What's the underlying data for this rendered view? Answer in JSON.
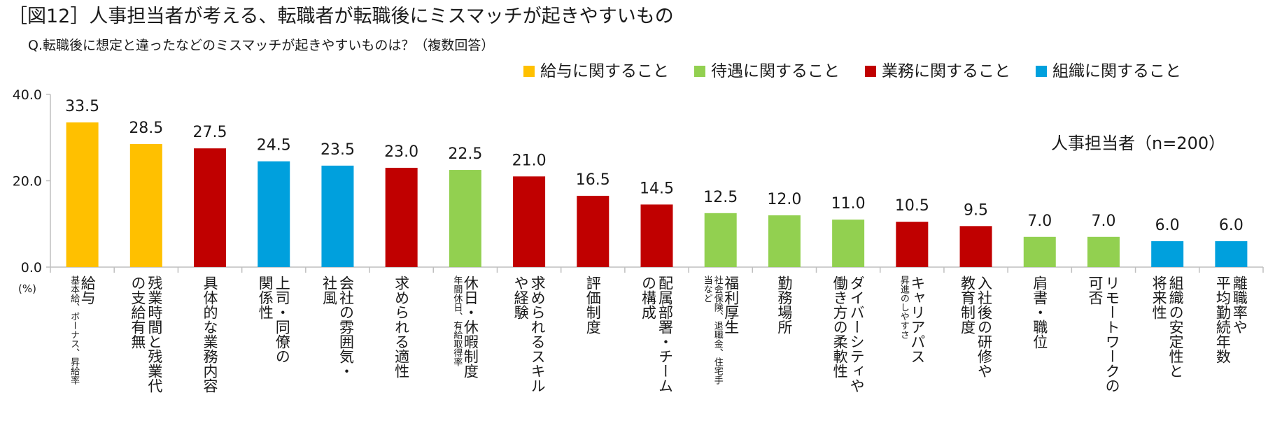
{
  "title": "［図12］人事担当者が考える、転職者が転職後にミスマッチが起きやすいもの",
  "subtitle": "Q.転職後に想定と違ったなどのミスマッチが起きやすいものは？（複数回答）",
  "note": "人事担当者（n=200）",
  "unit_label": "(%)",
  "colors": {
    "給与": "#FFC000",
    "待遇": "#92D050",
    "業務": "#C00000",
    "組織": "#00A0DD"
  },
  "legend": [
    {
      "group": "給与",
      "label": "給与に関すること"
    },
    {
      "group": "待遇",
      "label": "待遇に関すること"
    },
    {
      "group": "業務",
      "label": "業務に関すること"
    },
    {
      "group": "組織",
      "label": "組織に関すること"
    }
  ],
  "chart_data": {
    "type": "bar",
    "ylim": [
      0,
      40
    ],
    "yticks": [
      "0.0",
      "20.0",
      "40.0"
    ],
    "grid": false,
    "legend_position": "top-right",
    "categories": [
      {
        "main": [
          "給与"
        ],
        "sub": [
          "基本給、ボーナス、昇給率"
        ],
        "group": "給与"
      },
      {
        "main": [
          "残業時間と残業代",
          "の支給有無"
        ],
        "sub": [],
        "group": "給与"
      },
      {
        "main": [
          "具体的な業務内容"
        ],
        "sub": [],
        "group": "業務"
      },
      {
        "main": [
          "上司・同僚の",
          "関係性"
        ],
        "sub": [],
        "group": "組織"
      },
      {
        "main": [
          "会社の雰囲気・",
          "社風"
        ],
        "sub": [],
        "group": "組織"
      },
      {
        "main": [
          "求められる適性"
        ],
        "sub": [],
        "group": "業務"
      },
      {
        "main": [
          "休日・休暇制度"
        ],
        "sub": [
          "年間休日、有給取得率"
        ],
        "group": "待遇"
      },
      {
        "main": [
          "求められるスキル",
          "や経験"
        ],
        "sub": [],
        "group": "業務"
      },
      {
        "main": [
          "評価制度"
        ],
        "sub": [],
        "group": "業務"
      },
      {
        "main": [
          "配属部署・チーム",
          "の構成"
        ],
        "sub": [],
        "group": "業務"
      },
      {
        "main": [
          "福利厚生"
        ],
        "sub": [
          "社会保険、退職金、住宅手",
          "当など"
        ],
        "group": "待遇"
      },
      {
        "main": [
          "勤務場所"
        ],
        "sub": [],
        "group": "待遇"
      },
      {
        "main": [
          "ダイバーシティや",
          "働き方の柔軟性"
        ],
        "sub": [],
        "group": "待遇"
      },
      {
        "main": [
          "キャリアパス"
        ],
        "sub": [
          "昇進のしやすさ"
        ],
        "group": "業務"
      },
      {
        "main": [
          "入社後の研修や",
          "教育制度"
        ],
        "sub": [],
        "group": "業務"
      },
      {
        "main": [
          "肩書・職位"
        ],
        "sub": [],
        "group": "待遇"
      },
      {
        "main": [
          "リモートワークの",
          "可否"
        ],
        "sub": [],
        "group": "待遇"
      },
      {
        "main": [
          "組織の安定性と",
          "将来性"
        ],
        "sub": [],
        "group": "組織"
      },
      {
        "main": [
          "離職率や",
          "平均勤続年数"
        ],
        "sub": [],
        "group": "組織"
      }
    ],
    "values": [
      33.5,
      28.5,
      27.5,
      24.5,
      23.5,
      23.0,
      22.5,
      21.0,
      16.5,
      14.5,
      12.5,
      12.0,
      11.0,
      10.5,
      9.5,
      7.0,
      7.0,
      6.0,
      6.0
    ],
    "value_labels": [
      "33.5",
      "28.5",
      "27.5",
      "24.5",
      "23.5",
      "23.0",
      "22.5",
      "21.0",
      "16.5",
      "14.5",
      "12.5",
      "12.0",
      "11.0",
      "10.5",
      "9.5",
      "7.0",
      "7.0",
      "6.0",
      "6.0"
    ]
  }
}
